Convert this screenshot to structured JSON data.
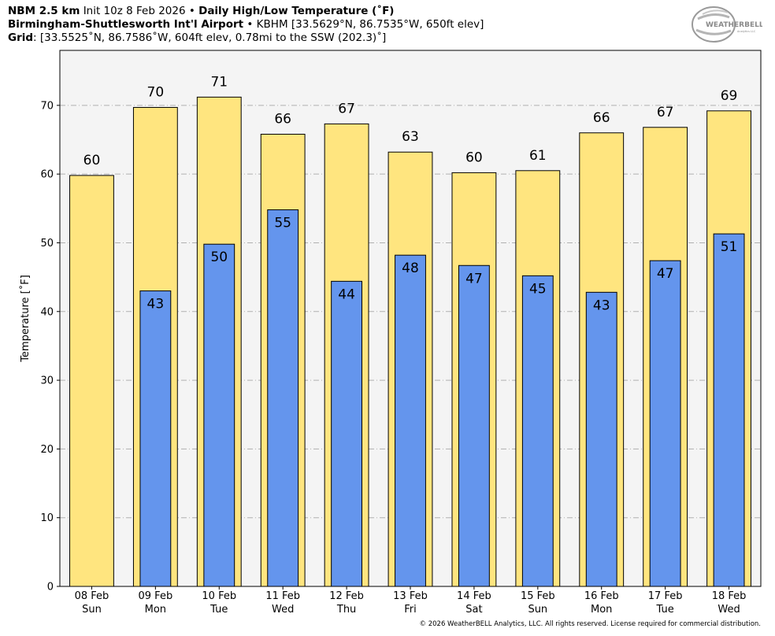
{
  "header": {
    "line1_bold": "NBM 2.5 km",
    "line1_init": "Init 10z 8 Feb 2026",
    "line1_sep": "•",
    "line1_product": "Daily High/Low Temperature (˚F)",
    "line2_station": "Birmingham-Shuttlesworth Int'l Airport",
    "line2_sep": "•",
    "line2_details": "KBHM [33.5629°N, 86.7535°W, 650ft elev]",
    "line3_label": "Grid",
    "line3_details": ": [33.5525˚N, 86.7586˚W, 604ft elev, 0.78mi to the SSW (202.3)˚]"
  },
  "logo": {
    "text_main": "WEATHERBELL",
    "text_sub": "Analytics LLC"
  },
  "copyright": "© 2026 WeatherBELL Analytics, LLC. All rights reserved. License required for commercial distribution.",
  "chart_data": {
    "type": "bar",
    "ylabel": "Temperature [˚F]",
    "ylim": [
      0,
      78
    ],
    "yticks": [
      0,
      10,
      20,
      30,
      40,
      50,
      60,
      70
    ],
    "grid": true,
    "categories": [
      {
        "date": "08 Feb",
        "day": "Sun"
      },
      {
        "date": "09 Feb",
        "day": "Mon"
      },
      {
        "date": "10 Feb",
        "day": "Tue"
      },
      {
        "date": "11 Feb",
        "day": "Wed"
      },
      {
        "date": "12 Feb",
        "day": "Thu"
      },
      {
        "date": "13 Feb",
        "day": "Fri"
      },
      {
        "date": "14 Feb",
        "day": "Sat"
      },
      {
        "date": "15 Feb",
        "day": "Sun"
      },
      {
        "date": "16 Feb",
        "day": "Mon"
      },
      {
        "date": "17 Feb",
        "day": "Tue"
      },
      {
        "date": "18 Feb",
        "day": "Wed"
      }
    ],
    "series": [
      {
        "values": [
          59.8,
          69.7,
          71.2,
          65.8,
          67.3,
          63.2,
          60.2,
          60.5,
          66.0,
          66.8,
          69.2
        ],
        "labels": [
          "60",
          "70",
          "71",
          "66",
          "67",
          "63",
          "60",
          "61",
          "66",
          "67",
          "69"
        ],
        "color": "#FFE57F"
      },
      {
        "values": [
          null,
          43.0,
          49.8,
          54.8,
          44.4,
          48.2,
          46.7,
          45.2,
          42.8,
          47.4,
          51.3
        ],
        "labels": [
          "",
          "43",
          "50",
          "55",
          "44",
          "48",
          "47",
          "45",
          "43",
          "47",
          "51"
        ],
        "color": "#6495ED"
      }
    ],
    "colors": {
      "plot_bg": "#F4F4F4",
      "grid": "#B0B0B0"
    }
  }
}
